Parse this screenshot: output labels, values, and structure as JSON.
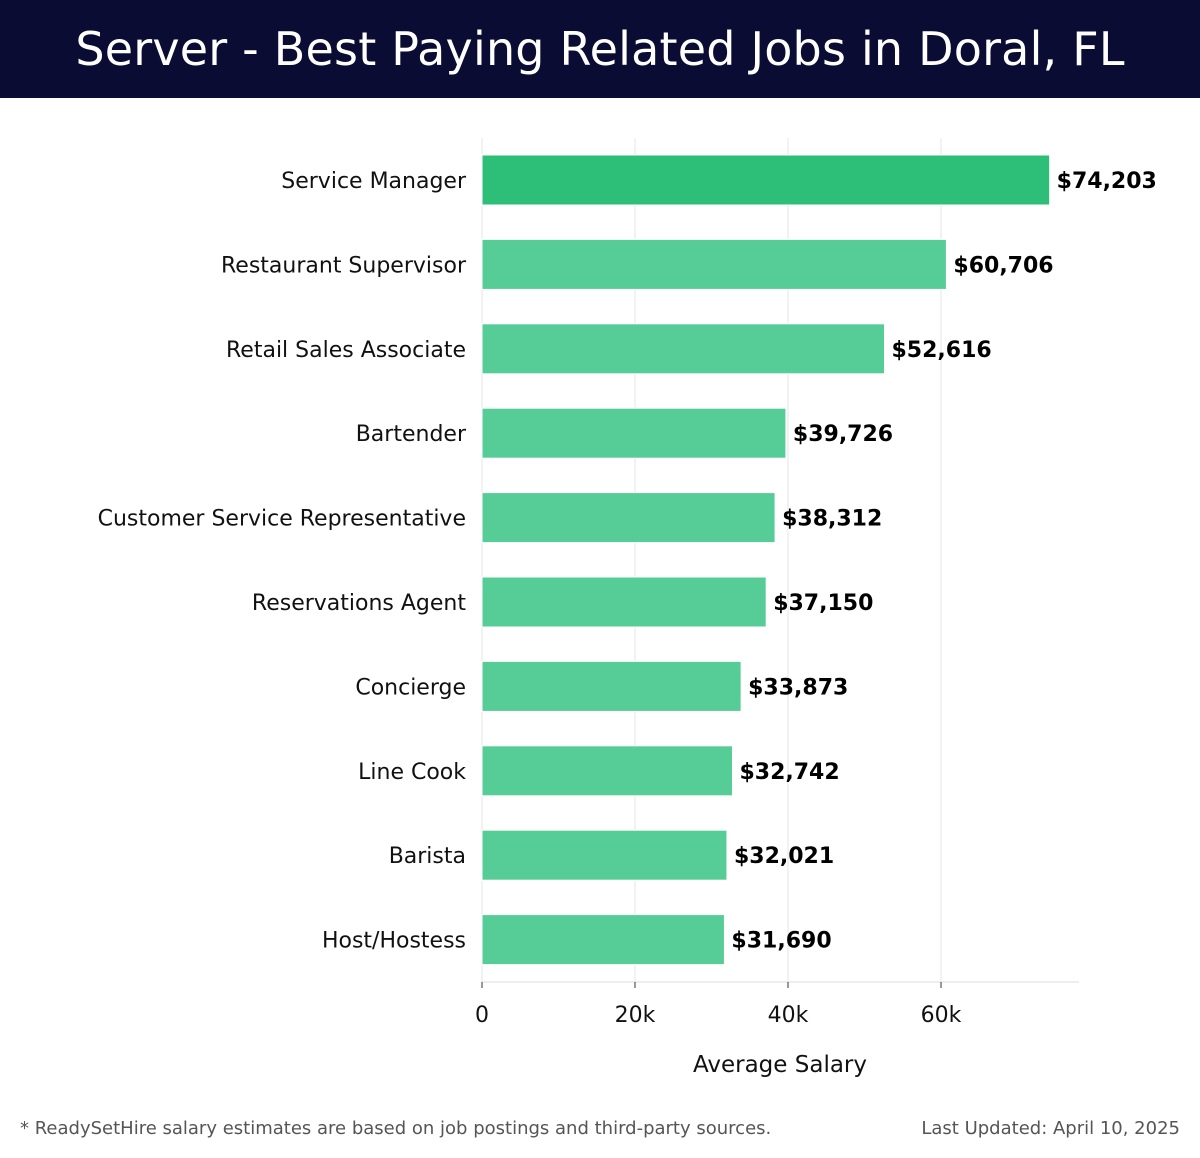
{
  "header": {
    "title": "Server - Best Paying Related Jobs in Doral, FL"
  },
  "footer": {
    "note": "* ReadySetHire salary estimates are based on job postings and third-party sources.",
    "updated": "Last Updated: April 10, 2025"
  },
  "colors": {
    "header_bg": "#0a0c33",
    "bar_top": "#2dbf78",
    "bar": "#56cc96",
    "grid": "#e6e6e6"
  },
  "chart_data": {
    "type": "bar",
    "orientation": "horizontal",
    "title": "Server - Best Paying Related Jobs in Doral, FL",
    "xlabel": "Average Salary",
    "ylabel": "",
    "categories": [
      "Service Manager",
      "Restaurant Supervisor",
      "Retail Sales Associate",
      "Bartender",
      "Customer Service Representative",
      "Reservations Agent",
      "Concierge",
      "Line Cook",
      "Barista",
      "Host/Hostess"
    ],
    "values": [
      74203,
      60706,
      52616,
      39726,
      38312,
      37150,
      33873,
      32742,
      32021,
      31690
    ],
    "value_labels": [
      "$74,203",
      "$60,706",
      "$52,616",
      "$39,726",
      "$38,312",
      "$37,150",
      "$33,873",
      "$32,742",
      "$32,021",
      "$31,690"
    ],
    "xticks": [
      0,
      20000,
      40000,
      60000
    ],
    "xtick_labels": [
      "0",
      "20k",
      "40k",
      "60k"
    ],
    "xlim": [
      0,
      78000
    ],
    "grid": true
  }
}
